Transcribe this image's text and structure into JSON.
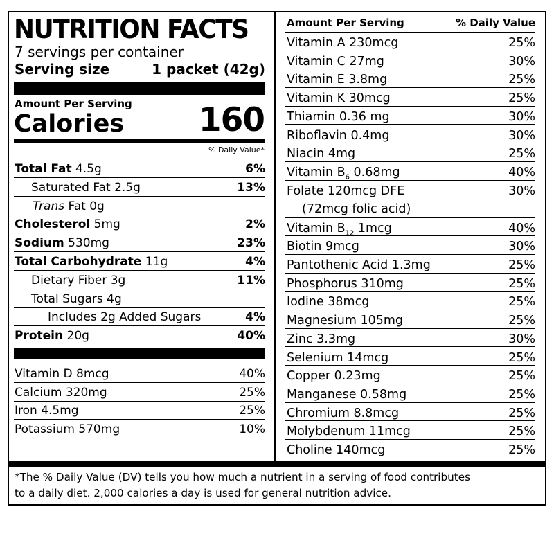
{
  "header": {
    "title": "NUTRITION FACTS",
    "servings": "7 servings per container",
    "serving_size_label": "Serving size",
    "serving_size_value": "1 packet (42g)"
  },
  "calories": {
    "amount_per_serving": "Amount Per Serving",
    "label": "Calories",
    "value": "160",
    "dv_header": "% Daily Value*"
  },
  "macros": [
    {
      "bold": "Total Fat",
      "rest": " 4.5g",
      "dv": "6%"
    },
    {
      "bold": "",
      "rest": "Saturated Fat 2.5g",
      "dv": "13%"
    },
    {
      "italic": "Trans",
      "rest": " Fat 0g",
      "dv": ""
    },
    {
      "bold": "Cholesterol",
      "rest": " 5mg",
      "dv": "2%"
    },
    {
      "bold": "Sodium",
      "rest": " 530mg",
      "dv": "23%"
    },
    {
      "bold": "Total Carbohydrate",
      "rest": " 11g",
      "dv": "4%"
    },
    {
      "bold": "",
      "rest": "Dietary Fiber 3g",
      "dv": "11%"
    },
    {
      "bold": "",
      "rest": "Total Sugars 4g",
      "dv": ""
    },
    {
      "bold": "",
      "rest": "Includes 2g Added Sugars",
      "dv": "4%"
    },
    {
      "bold": "Protein",
      "rest": " 20g",
      "dv": "40%"
    }
  ],
  "minerals_left": [
    {
      "name": "Vitamin D 8mcg",
      "dv": "40%"
    },
    {
      "name": "Calcium 320mg",
      "dv": "25%"
    },
    {
      "name": "Iron 4.5mg",
      "dv": "25%"
    },
    {
      "name": "Potassium 570mg",
      "dv": "10%"
    }
  ],
  "right": {
    "header_amount": "Amount Per Serving",
    "header_dv": "% Daily Value",
    "items": [
      {
        "name": "Vitamin A  230mcg",
        "dv": "25%"
      },
      {
        "name": "Vitamin C  27mg",
        "dv": "30%"
      },
      {
        "name": "Vitamin E  3.8mg",
        "dv": "25%"
      },
      {
        "name": "Vitamin K  30mcg",
        "dv": "25%"
      },
      {
        "name": "Thiamin  0.36 mg",
        "dv": "30%"
      },
      {
        "name": "Riboflavin  0.4mg",
        "dv": "30%"
      },
      {
        "name": "Niacin  4mg",
        "dv": "25%"
      },
      {
        "name": "Vitamin B",
        "sub": "6",
        "after": "  0.68mg",
        "dv": "40%"
      },
      {
        "name": "Folate  120mcg DFE",
        "line2": "(72mcg folic acid)",
        "dv": "30%"
      },
      {
        "name": "Vitamin B",
        "sub": "12",
        "after": "  1mcg",
        "dv": "40%"
      },
      {
        "name": "Biotin  9mcg",
        "dv": "30%"
      },
      {
        "name": "Pantothenic Acid  1.3mg",
        "dv": "25%"
      },
      {
        "name": "Phosphorus  310mg",
        "dv": "25%"
      },
      {
        "name": "Iodine  38mcg",
        "dv": "25%"
      },
      {
        "name": "Magnesium  105mg",
        "dv": "25%"
      },
      {
        "name": "Zinc  3.3mg",
        "dv": "30%"
      },
      {
        "name": "Selenium  14mcg",
        "dv": "25%"
      },
      {
        "name": "Copper  0.23mg",
        "dv": "25%"
      },
      {
        "name": "Manganese  0.58mg",
        "dv": "25%"
      },
      {
        "name": "Chromium  8.8mcg",
        "dv": "25%"
      },
      {
        "name": "Molybdenum  11mcg",
        "dv": "25%"
      },
      {
        "name": "Choline  140mcg",
        "dv": "25%"
      }
    ]
  },
  "footnote": {
    "line1": "*The % Daily Value (DV) tells you how much a nutrient in a serving of food contributes",
    "line2": "to a daily diet. 2,000 calories a day is used for general nutrition advice."
  }
}
